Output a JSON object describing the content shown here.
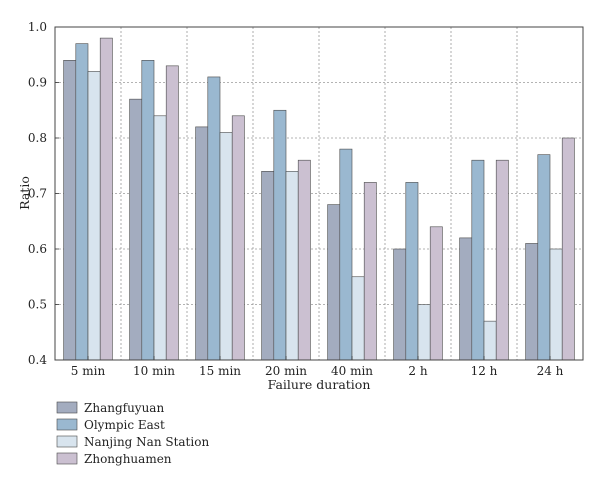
{
  "chart_data": {
    "type": "bar",
    "xlabel": "Failure duration",
    "ylabel": "Ratio",
    "ylim": [
      0.4,
      1.0
    ],
    "yticks": [
      "0.4",
      "0.5",
      "0.6",
      "0.7",
      "0.8",
      "0.9",
      "1.0"
    ],
    "grid": true,
    "legend_position": "bottom-left",
    "categories": [
      "5 min",
      "10 min",
      "15 min",
      "20 min",
      "40 min",
      "2 h",
      "12 h",
      "24 h"
    ],
    "series": [
      {
        "name": "Zhangfuyuan",
        "color": "#a3acbf",
        "values": [
          0.94,
          0.87,
          0.82,
          0.74,
          0.68,
          0.6,
          0.62,
          0.61
        ]
      },
      {
        "name": "Olympic East",
        "color": "#9ab8d0",
        "values": [
          0.97,
          0.94,
          0.91,
          0.85,
          0.78,
          0.72,
          0.76,
          0.77
        ]
      },
      {
        "name": "Nanjing Nan Station",
        "color": "#d8e4ee",
        "values": [
          0.92,
          0.84,
          0.81,
          0.74,
          0.55,
          0.5,
          0.47,
          0.6
        ]
      },
      {
        "name": "Zhonghuamen",
        "color": "#cbc0d1",
        "values": [
          0.98,
          0.93,
          0.84,
          0.76,
          0.72,
          0.64,
          0.76,
          0.8
        ]
      }
    ]
  }
}
